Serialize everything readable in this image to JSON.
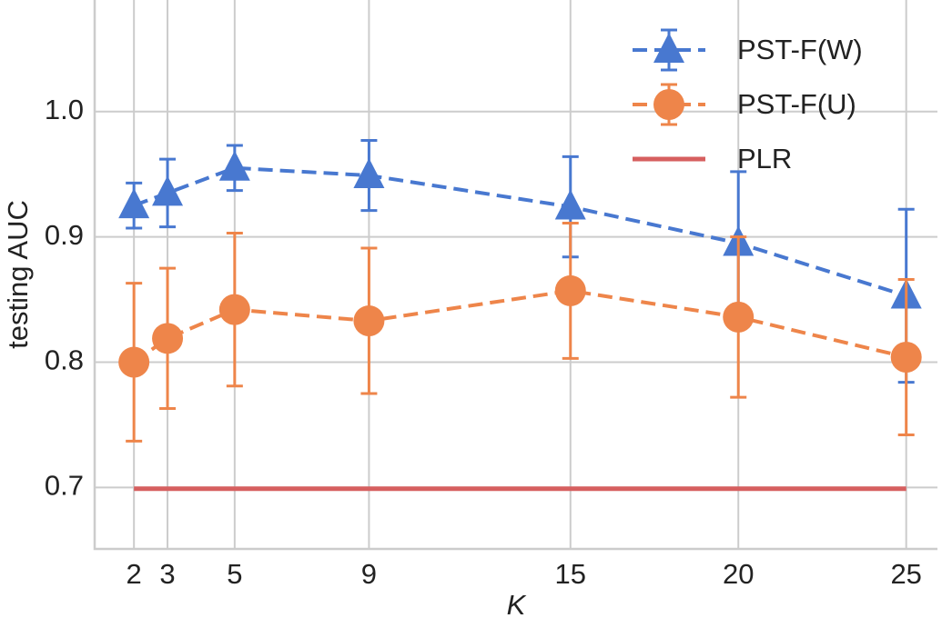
{
  "chart_data": {
    "type": "line",
    "x_label": "K",
    "y_label": "testing AUC",
    "x": [
      2,
      3,
      5,
      9,
      15,
      20,
      25
    ],
    "xlim": [
      0.83,
      25.93
    ],
    "xticks": [
      2,
      3,
      5,
      9,
      15,
      20,
      25
    ],
    "ylim": [
      0.651,
      1.089
    ],
    "yticks": [
      0.7,
      0.8,
      0.9,
      {
        "value": 1.0,
        "label": "1.0"
      }
    ],
    "grid": true,
    "legend": "upper right",
    "series": [
      {
        "name": "PST-F(W)",
        "color": "#4878d0",
        "marker": "triangle",
        "dashed": true,
        "values": [
          0.925,
          0.935,
          0.955,
          0.949,
          0.924,
          0.895,
          0.853
        ],
        "errors": [
          0.018,
          0.027,
          0.018,
          0.028,
          0.04,
          0.057,
          0.069
        ]
      },
      {
        "name": "PST-F(U)",
        "color": "#ee854a",
        "marker": "circle",
        "dashed": true,
        "values": [
          0.8,
          0.819,
          0.842,
          0.833,
          0.857,
          0.836,
          0.804
        ],
        "errors": [
          0.063,
          0.056,
          0.061,
          0.058,
          0.054,
          0.064,
          0.062
        ]
      },
      {
        "name": "PLR",
        "color": "#d65f5f",
        "marker": "none",
        "dashed": false,
        "values": [
          0.699,
          0.699,
          0.699,
          0.699,
          0.699,
          0.699,
          0.699
        ]
      }
    ]
  }
}
